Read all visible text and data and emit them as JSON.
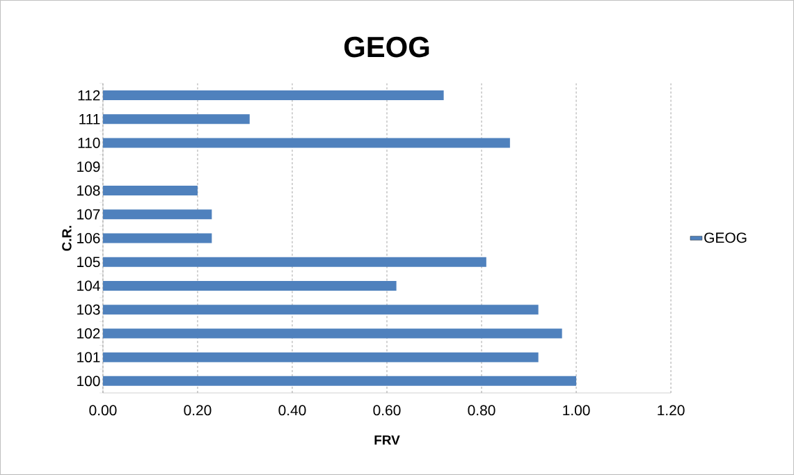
{
  "chart_data": {
    "type": "bar",
    "orientation": "horizontal",
    "title": "GEOG",
    "xlabel": "FRV",
    "ylabel": "C.R.",
    "categories": [
      "112",
      "111",
      "110",
      "109",
      "108",
      "107",
      "106",
      "105",
      "104",
      "103",
      "102",
      "101",
      "100"
    ],
    "series": [
      {
        "name": "GEOG",
        "color": "#4f81bd",
        "values": [
          0.72,
          0.31,
          0.86,
          null,
          0.2,
          0.23,
          0.23,
          0.81,
          0.62,
          0.92,
          0.97,
          0.92,
          1.0
        ]
      }
    ],
    "xlim": [
      0,
      1.2
    ],
    "xticks": [
      {
        "value": 0,
        "label": "0.00"
      },
      {
        "value": 0.2,
        "label": "0.20"
      },
      {
        "value": 0.4,
        "label": "0.40"
      },
      {
        "value": 0.6,
        "label": "0.60"
      },
      {
        "value": 0.8,
        "label": "0.80"
      },
      {
        "value": 1.0,
        "label": "1.00"
      },
      {
        "value": 1.2,
        "label": "1.20"
      }
    ],
    "grid": "x",
    "legend": "right"
  }
}
